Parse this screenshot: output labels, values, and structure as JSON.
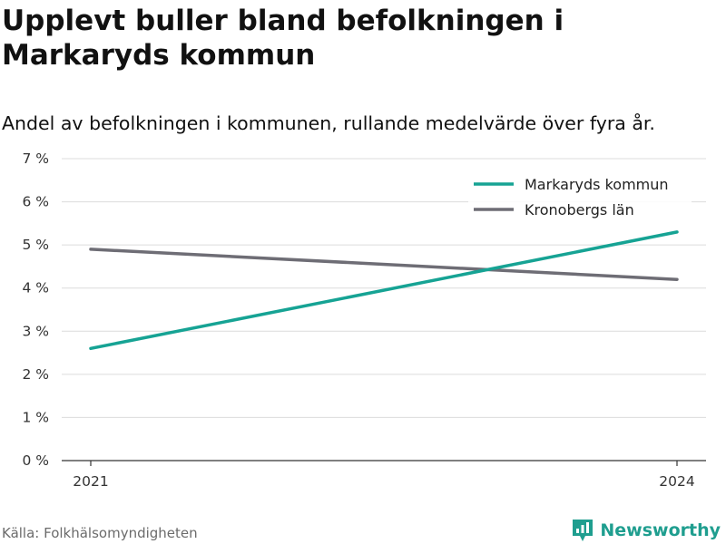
{
  "header": {
    "title": "Upplevt buller bland befolkningen i Markaryds kommun",
    "subtitle": "Andel av befolkningen i kommunen, rullande medelvärde över fyra år."
  },
  "footer": {
    "source": "Källa: Folkhälsomyndigheten",
    "brand": "Newsworthy",
    "brand_icon": "bar-chart-logo-icon"
  },
  "chart_data": {
    "type": "line",
    "x": [
      2021,
      2024
    ],
    "x_tick_labels": [
      "2021",
      "2024"
    ],
    "ylim": [
      0,
      7
    ],
    "y_ticks": [
      0,
      1,
      2,
      3,
      4,
      5,
      6,
      7
    ],
    "y_tick_labels": [
      "0 %",
      "1 %",
      "2 %",
      "3 %",
      "4 %",
      "5 %",
      "6 %",
      "7 %"
    ],
    "grid": true,
    "legend": "top-right",
    "series": [
      {
        "name": "Markaryds kommun",
        "values": [
          2.6,
          5.3
        ],
        "color": "#16a394"
      },
      {
        "name": "Kronobergs län",
        "values": [
          4.9,
          4.2
        ],
        "color": "#6e6d75"
      }
    ]
  }
}
